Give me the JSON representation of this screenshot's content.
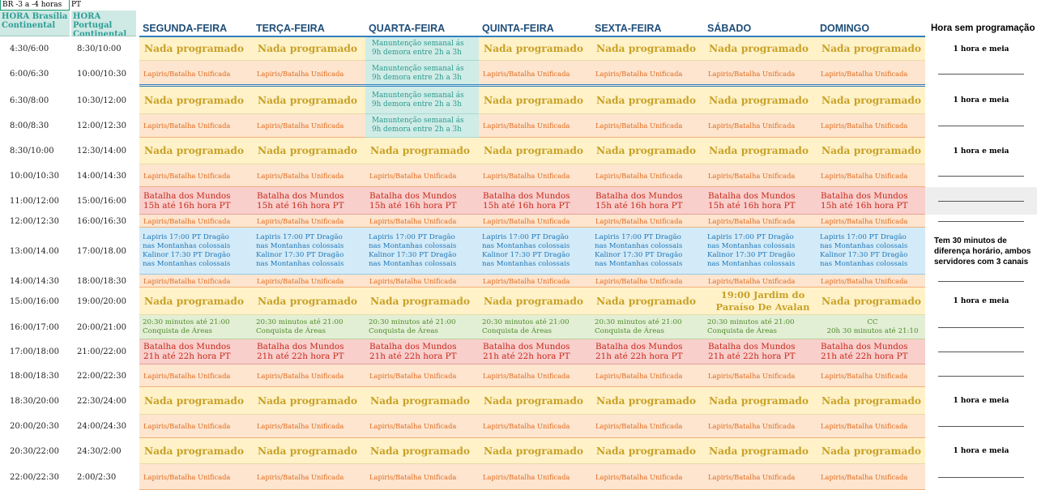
{
  "header": {
    "br_label": "BR -3 a -4 horas",
    "pt_label": "PT",
    "hora_brasilia": "HORA Brasília Continental",
    "hora_portugal": "HORA Portugal Continental",
    "days": [
      "SEGUNDA-FEIRA",
      "TERÇA-FEIRA",
      "QUARTA-FEIRA",
      "QUINTA-FEIRA",
      "SEXTA-FEIRA",
      "SÁBADO",
      "DOMINGO"
    ],
    "no_program_column": "Hora sem programação"
  },
  "texts": {
    "nada": "Nada programado",
    "lapiris": "Lapiris/Batalha Unificada",
    "manutencao": "Manuntenção semanal ás\n9h demora entre 2h a 3h",
    "batalha_15": "Batalha dos Mundos\n15h até 16h hora PT",
    "batalha_21": "Batalha dos Mundos\n21h até 22h hora PT",
    "dragao": "Lapiris 17:00 PT Dragão\nnas Montanhas colossais\nKalinor 17:30 PT Dragão\nnas Montanhas colossais",
    "conquista": "20:30 minutos  até 21:00\nConquista de Áreas",
    "jardim": "19:00 Jardim do\nParaíso De Avalan",
    "cc": "CC\n20h 30 minutos  até 21:10",
    "uma_hora": "1 hora e meia",
    "diferenca": "Tem 30 minutos de\ndiferença horário, ambos\nservidores com 3 canais"
  },
  "rows": [
    {
      "br": "4:30/6:00",
      "pt": "8:30/10:00"
    },
    {
      "br": "6:00/6:30",
      "pt": "10:00/10:30"
    },
    {
      "br": "6:30/8:00",
      "pt": "10:30/12:00"
    },
    {
      "br": "8:00/8:30",
      "pt": "12:00/12:30"
    },
    {
      "br": "8:30/10:00",
      "pt": "12:30/14:00"
    },
    {
      "br": "10:00/10:30",
      "pt": "14:00/14:30"
    },
    {
      "br": "11:00/12:00",
      "pt": "15:00/16:00"
    },
    {
      "br": "12:00/12:30",
      "pt": "16:00/16:30"
    },
    {
      "br": "13:00/14.00",
      "pt": "17:00/18.00"
    },
    {
      "br": "14:00/14:30",
      "pt": "18:00/18:30"
    },
    {
      "br": "15:00/16:00",
      "pt": "19:00/20:00"
    },
    {
      "br": "16:00/17:00",
      "pt": "20:00/21:00"
    },
    {
      "br": "17:00/18:00",
      "pt": "21:00/22:00"
    },
    {
      "br": "18:00/18:30",
      "pt": "22:00/22:30"
    },
    {
      "br": "18:30/20:00",
      "pt": "22:30/24:00"
    },
    {
      "br": "20:00/20:30",
      "pt": "24:00/24:30"
    },
    {
      "br": "20:30/22:00",
      "pt": "24:30/2:00"
    },
    {
      "br": "22:00/22:30",
      "pt": "2:00/2:30"
    }
  ],
  "layout_codes": [
    {
      "days": "NNMNNNN",
      "note": "H"
    },
    {
      "days": "LLMLLLL",
      "note": "D"
    },
    {
      "days": "NNMNNNN",
      "note": "H"
    },
    {
      "days": "LLMLLLL",
      "note": "D"
    },
    {
      "days": "NNNNNNN",
      "note": "H"
    },
    {
      "days": "LLLLLLL",
      "note": "D"
    },
    {
      "days": "BBBBBBB",
      "note": "D"
    },
    {
      "days": "LLLLLLL",
      "note": "D"
    },
    {
      "days": "GGGGGGG",
      "note": "W"
    },
    {
      "days": "LLLLLLL",
      "note": "D"
    },
    {
      "days": "NNNNNJN",
      "note": "H"
    },
    {
      "days": "CCCCCCK",
      "note": "D"
    },
    {
      "days": "TTTTTTT",
      "note": "D"
    },
    {
      "days": "LLLLLLL",
      "note": "D"
    },
    {
      "days": "NNNNNNN",
      "note": "H"
    },
    {
      "days": "LLLLLLL",
      "note": "D"
    },
    {
      "days": "NNNNNNN",
      "note": "H"
    },
    {
      "days": "LLLLLLL",
      "note": "D"
    }
  ]
}
